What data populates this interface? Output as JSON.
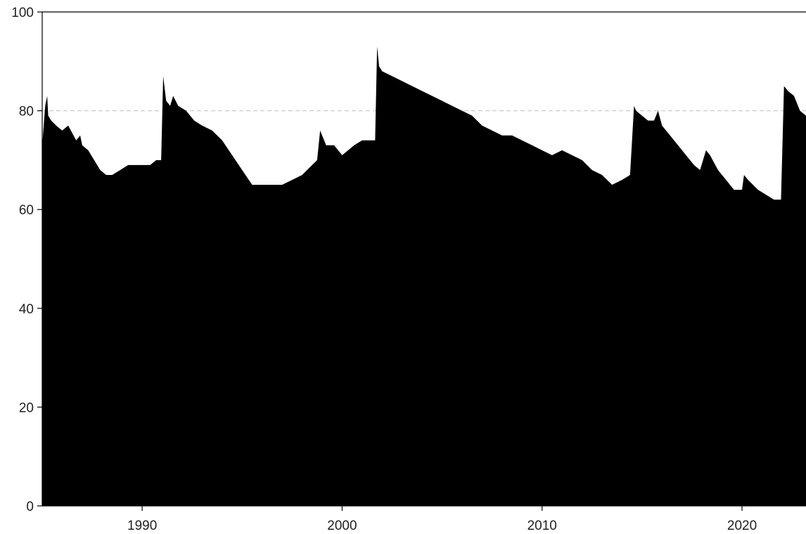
{
  "chart_data": {
    "type": "area",
    "title": "",
    "xlabel": "",
    "ylabel": "",
    "xlim": [
      1985.0,
      2023.2
    ],
    "ylim": [
      0,
      100
    ],
    "x_ticks": [
      1990,
      2000,
      2010,
      2020
    ],
    "y_ticks": [
      0,
      20,
      40,
      60,
      80,
      100
    ],
    "reference_line": {
      "y": 80,
      "style": "dashed",
      "color": "#cccccc"
    },
    "grid": false,
    "legend": "none",
    "fill_color": "#000000",
    "series": [
      {
        "x": [
          1985.0,
          1985.15,
          1985.25,
          1985.3,
          1985.45,
          1985.7,
          1986.0,
          1986.3,
          1986.7,
          1986.9,
          1987.0,
          1987.3,
          1987.6,
          1987.9,
          1988.2,
          1988.5,
          1988.9,
          1989.3,
          1989.7,
          1990.0,
          1990.4,
          1990.7,
          1990.95,
          1991.05,
          1991.2,
          1991.4,
          1991.55,
          1991.8,
          1992.2,
          1992.6,
          1993.0,
          1993.5,
          1994.0,
          1994.5,
          1995.0,
          1995.5,
          1996.0,
          1996.5,
          1997.0,
          1997.5,
          1998.0,
          1998.5,
          1998.75,
          1998.9,
          1999.2,
          1999.6,
          2000.0,
          2000.3,
          2000.6,
          2001.0,
          2001.4,
          2001.65,
          2001.75,
          2001.85,
          2002.0,
          2002.5,
          2003.0,
          2003.5,
          2004.0,
          2004.5,
          2005.0,
          2005.5,
          2006.0,
          2006.5,
          2007.0,
          2007.5,
          2008.0,
          2008.5,
          2009.0,
          2009.5,
          2010.0,
          2010.5,
          2011.0,
          2011.5,
          2012.0,
          2012.5,
          2013.0,
          2013.5,
          2014.0,
          2014.4,
          2014.6,
          2014.7,
          2015.0,
          2015.3,
          2015.6,
          2015.8,
          2016.0,
          2016.4,
          2016.8,
          2017.2,
          2017.6,
          2017.9,
          2018.2,
          2018.4,
          2018.8,
          2019.2,
          2019.6,
          2020.0,
          2020.1,
          2020.3,
          2020.8,
          2021.2,
          2021.6,
          2021.95,
          2022.1,
          2022.3,
          2022.6,
          2022.9,
          2023.2
        ],
        "y": [
          73,
          81,
          83,
          79,
          78,
          77,
          76,
          77,
          74,
          75,
          73,
          72,
          70,
          68,
          67,
          67,
          68,
          69,
          69,
          69,
          69,
          70,
          70,
          87,
          82,
          81,
          83,
          81,
          80,
          78,
          77,
          76,
          74,
          71,
          68,
          65,
          65,
          65,
          65,
          66,
          67,
          69,
          70,
          76,
          73,
          73,
          71,
          72,
          73,
          74,
          74,
          74,
          93,
          89,
          88,
          87,
          86,
          85,
          84,
          83,
          82,
          81,
          80,
          79,
          77,
          76,
          75,
          75,
          74,
          73,
          72,
          71,
          72,
          71,
          70,
          68,
          67,
          65,
          66,
          67,
          81,
          80,
          79,
          78,
          78,
          80,
          77,
          75,
          73,
          71,
          69,
          68,
          72,
          71,
          68,
          66,
          64,
          64,
          67,
          66,
          64,
          63,
          62,
          62,
          85,
          84,
          83,
          80,
          79
        ]
      }
    ]
  }
}
